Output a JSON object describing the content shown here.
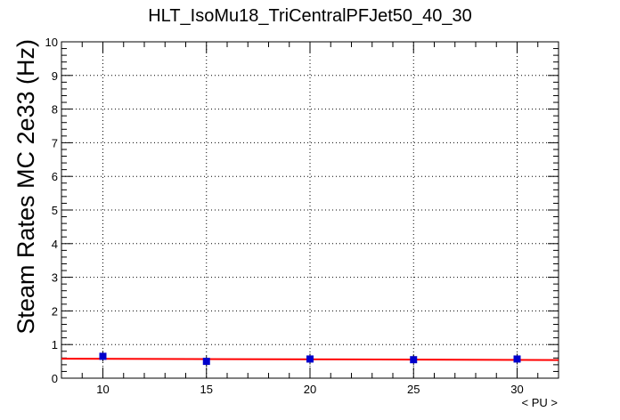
{
  "chart_data": {
    "type": "scatter",
    "title": "HLT_IsoMu18_TriCentralPFJet50_40_30",
    "xlabel": "< PU >",
    "ylabel": "Steam Rates MC 2e33 (Hz)",
    "xlim": [
      8,
      32
    ],
    "ylim": [
      0,
      10
    ],
    "xticks": [
      10,
      15,
      20,
      25,
      30
    ],
    "yticks": [
      0,
      1,
      2,
      3,
      4,
      5,
      6,
      7,
      8,
      9,
      10
    ],
    "grid": true,
    "series": [
      {
        "kind": "points",
        "color": "#0000cc",
        "x": [
          10,
          15,
          20,
          25,
          30
        ],
        "y": [
          0.65,
          0.5,
          0.57,
          0.55,
          0.57
        ]
      },
      {
        "kind": "fit-line",
        "color": "#ff0000",
        "x": [
          8,
          32
        ],
        "y": [
          0.58,
          0.54
        ]
      }
    ]
  }
}
